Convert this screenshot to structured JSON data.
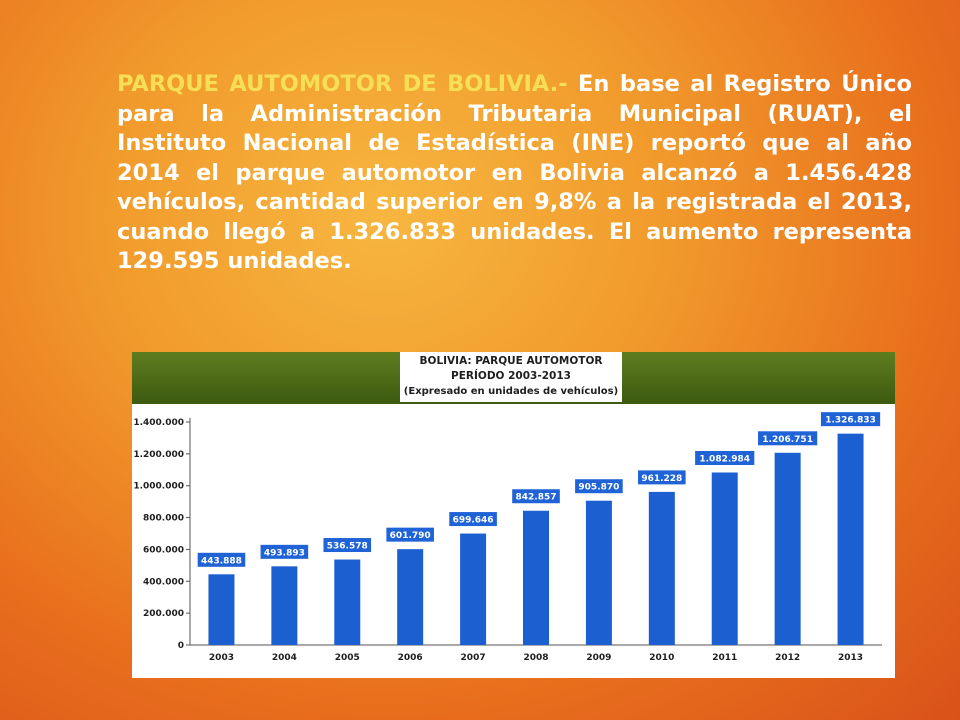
{
  "slide": {
    "lead": "PARQUE AUTOMOTOR DE BOLIVIA.-",
    "body": " En base al Registro Único para la Administración Tributaria Municipal (RUAT), el Instituto Nacional de Estadística (INE) reportó que al año 2014 el parque automotor en Bolivia alcanzó a 1.456.428 vehículos, cantidad superior en 9,8% a la registrada el 2013, cuando llegó a 1.326.833 unidades. El aumento representa 129.595 unidades."
  },
  "colors": {
    "bar": "#1c5fd1",
    "bar_label_bg": "#1f63d6",
    "header_green": "#4c6b16",
    "text_highlight": "#f6df56"
  },
  "chart_data": {
    "type": "bar",
    "title": "BOLIVIA: PARQUE AUTOMOTOR",
    "subtitle": "PERÍODO 2003-2013",
    "note": "(Expresado en unidades de vehículos)",
    "categories": [
      "2003",
      "2004",
      "2005",
      "2006",
      "2007",
      "2008",
      "2009",
      "2010",
      "2011",
      "2012",
      "2013"
    ],
    "values": [
      443888,
      493893,
      536578,
      601790,
      699646,
      842857,
      905870,
      961228,
      1082984,
      1206751,
      1326833
    ],
    "value_labels": [
      "443.888",
      "493.893",
      "536.578",
      "601.790",
      "699.646",
      "842.857",
      "905.870",
      "961.228",
      "1.082.984",
      "1.206.751",
      "1.326.833"
    ],
    "yticks": [
      0,
      200000,
      400000,
      600000,
      800000,
      1000000,
      1200000,
      1400000
    ],
    "ytick_labels": [
      "0",
      "200.000",
      "400.000",
      "600.000",
      "800.000",
      "1.000.000",
      "1.200.000",
      "1.400.000"
    ],
    "ylim": [
      0,
      1400000
    ],
    "grid": false,
    "legend": "none"
  }
}
